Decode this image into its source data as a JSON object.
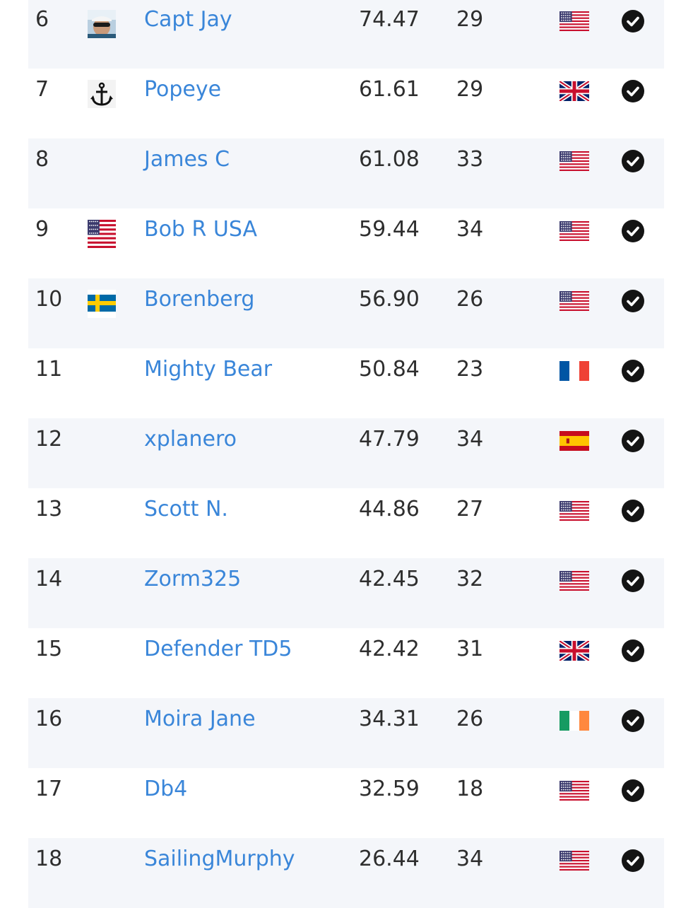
{
  "leaderboard": {
    "rows": [
      {
        "rank": "6",
        "avatar": "photo-avatar",
        "name": "Capt Jay",
        "score": "74.47",
        "count": "29",
        "flag": "us",
        "verified": true
      },
      {
        "rank": "7",
        "avatar": "anchor-avatar",
        "name": "Popeye",
        "score": "61.61",
        "count": "29",
        "flag": "gb",
        "verified": true
      },
      {
        "rank": "8",
        "avatar": "",
        "name": "James C",
        "score": "61.08",
        "count": "33",
        "flag": "us",
        "verified": true
      },
      {
        "rank": "9",
        "avatar": "us-flag-avatar",
        "name": "Bob R USA",
        "score": "59.44",
        "count": "34",
        "flag": "us",
        "verified": true
      },
      {
        "rank": "10",
        "avatar": "se-flag-avatar",
        "name": "Borenberg",
        "score": "56.90",
        "count": "26",
        "flag": "us",
        "verified": true
      },
      {
        "rank": "11",
        "avatar": "",
        "name": "Mighty Bear",
        "score": "50.84",
        "count": "23",
        "flag": "fr",
        "verified": true
      },
      {
        "rank": "12",
        "avatar": "",
        "name": "xplanero",
        "score": "47.79",
        "count": "34",
        "flag": "es",
        "verified": true
      },
      {
        "rank": "13",
        "avatar": "",
        "name": "Scott N.",
        "score": "44.86",
        "count": "27",
        "flag": "us",
        "verified": true
      },
      {
        "rank": "14",
        "avatar": "",
        "name": "Zorm325",
        "score": "42.45",
        "count": "32",
        "flag": "us",
        "verified": true
      },
      {
        "rank": "15",
        "avatar": "",
        "name": "Defender TD5",
        "score": "42.42",
        "count": "31",
        "flag": "gb",
        "verified": true
      },
      {
        "rank": "16",
        "avatar": "",
        "name": "Moira Jane",
        "score": "34.31",
        "count": "26",
        "flag": "ie",
        "verified": true
      },
      {
        "rank": "17",
        "avatar": "",
        "name": "Db4",
        "score": "32.59",
        "count": "18",
        "flag": "us",
        "verified": true
      },
      {
        "rank": "18",
        "avatar": "",
        "name": "SailingMurphy",
        "score": "26.44",
        "count": "34",
        "flag": "us",
        "verified": true
      }
    ]
  },
  "colors": {
    "link": "#3a86d9",
    "stripe": "#f4f6fa",
    "text": "#2e2e2e"
  }
}
